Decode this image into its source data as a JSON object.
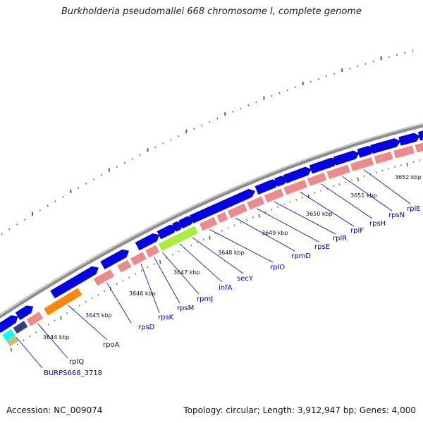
{
  "title": "Burkholderia pseudomallei 668 chromosome I, complete genome",
  "footer": {
    "accession": "Accession: NC_009074",
    "summary": "Topology: circular; Length: 3,912,947 bp; Genes: 4,000"
  },
  "map": {
    "colors": {
      "backbone": "#8c8c8c",
      "cds_forward": "#0000ee",
      "rrna_gene": "#ee8a8a",
      "highlight_green": "#a6f03a",
      "highlight_orange": "#ff8800",
      "highlight_cyan": "#00ffff",
      "highlight_navy": "#3a3a8a",
      "highlight_tan": "#c8c080",
      "tick": "#2e7d1e",
      "label": "#0000cc",
      "kbp_label": "#111111"
    },
    "kbp_labels": [
      "3644 kbp",
      "3645 kbp",
      "3646 kbp",
      "3647 kbp",
      "3648 kbp",
      "3649 kbp",
      "3650 kbp",
      "3651 kbp",
      "3652 kbp"
    ],
    "gene_labels": [
      "BURPS668_3718",
      "rplQ",
      "rpoA",
      "rpsD",
      "rpsK",
      "rpsM",
      "rpmJ",
      "infA",
      "secY",
      "rplO",
      "rpmD",
      "rpsE",
      "rplR",
      "rplF",
      "rpsH",
      "rpsN",
      "rplE"
    ]
  }
}
